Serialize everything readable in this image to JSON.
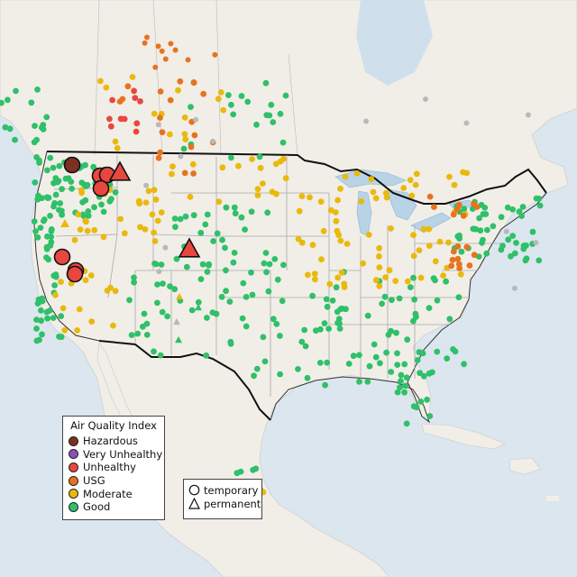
{
  "legend": {
    "title": "Air Quality Index",
    "categories": [
      {
        "label": "Hazardous",
        "color": "#7e2f23"
      },
      {
        "label": "Very Unhealthy",
        "color": "#8e4fb1"
      },
      {
        "label": "Unhealthy",
        "color": "#e8473f"
      },
      {
        "label": "USG",
        "color": "#e8731e"
      },
      {
        "label": "Moderate",
        "color": "#e9b90c"
      },
      {
        "label": "Good",
        "color": "#2fc069"
      }
    ]
  },
  "monitor_types": [
    {
      "label": "temporary",
      "shape": "circle"
    },
    {
      "label": "permanent",
      "shape": "triangle"
    }
  ],
  "colors": {
    "water": "#dbe6ee",
    "land": "#f2efe9",
    "land_canada": "#efece6",
    "border": "#111111",
    "state_lines": "#a9a9a9",
    "no_data": "#b9b9b9"
  }
}
